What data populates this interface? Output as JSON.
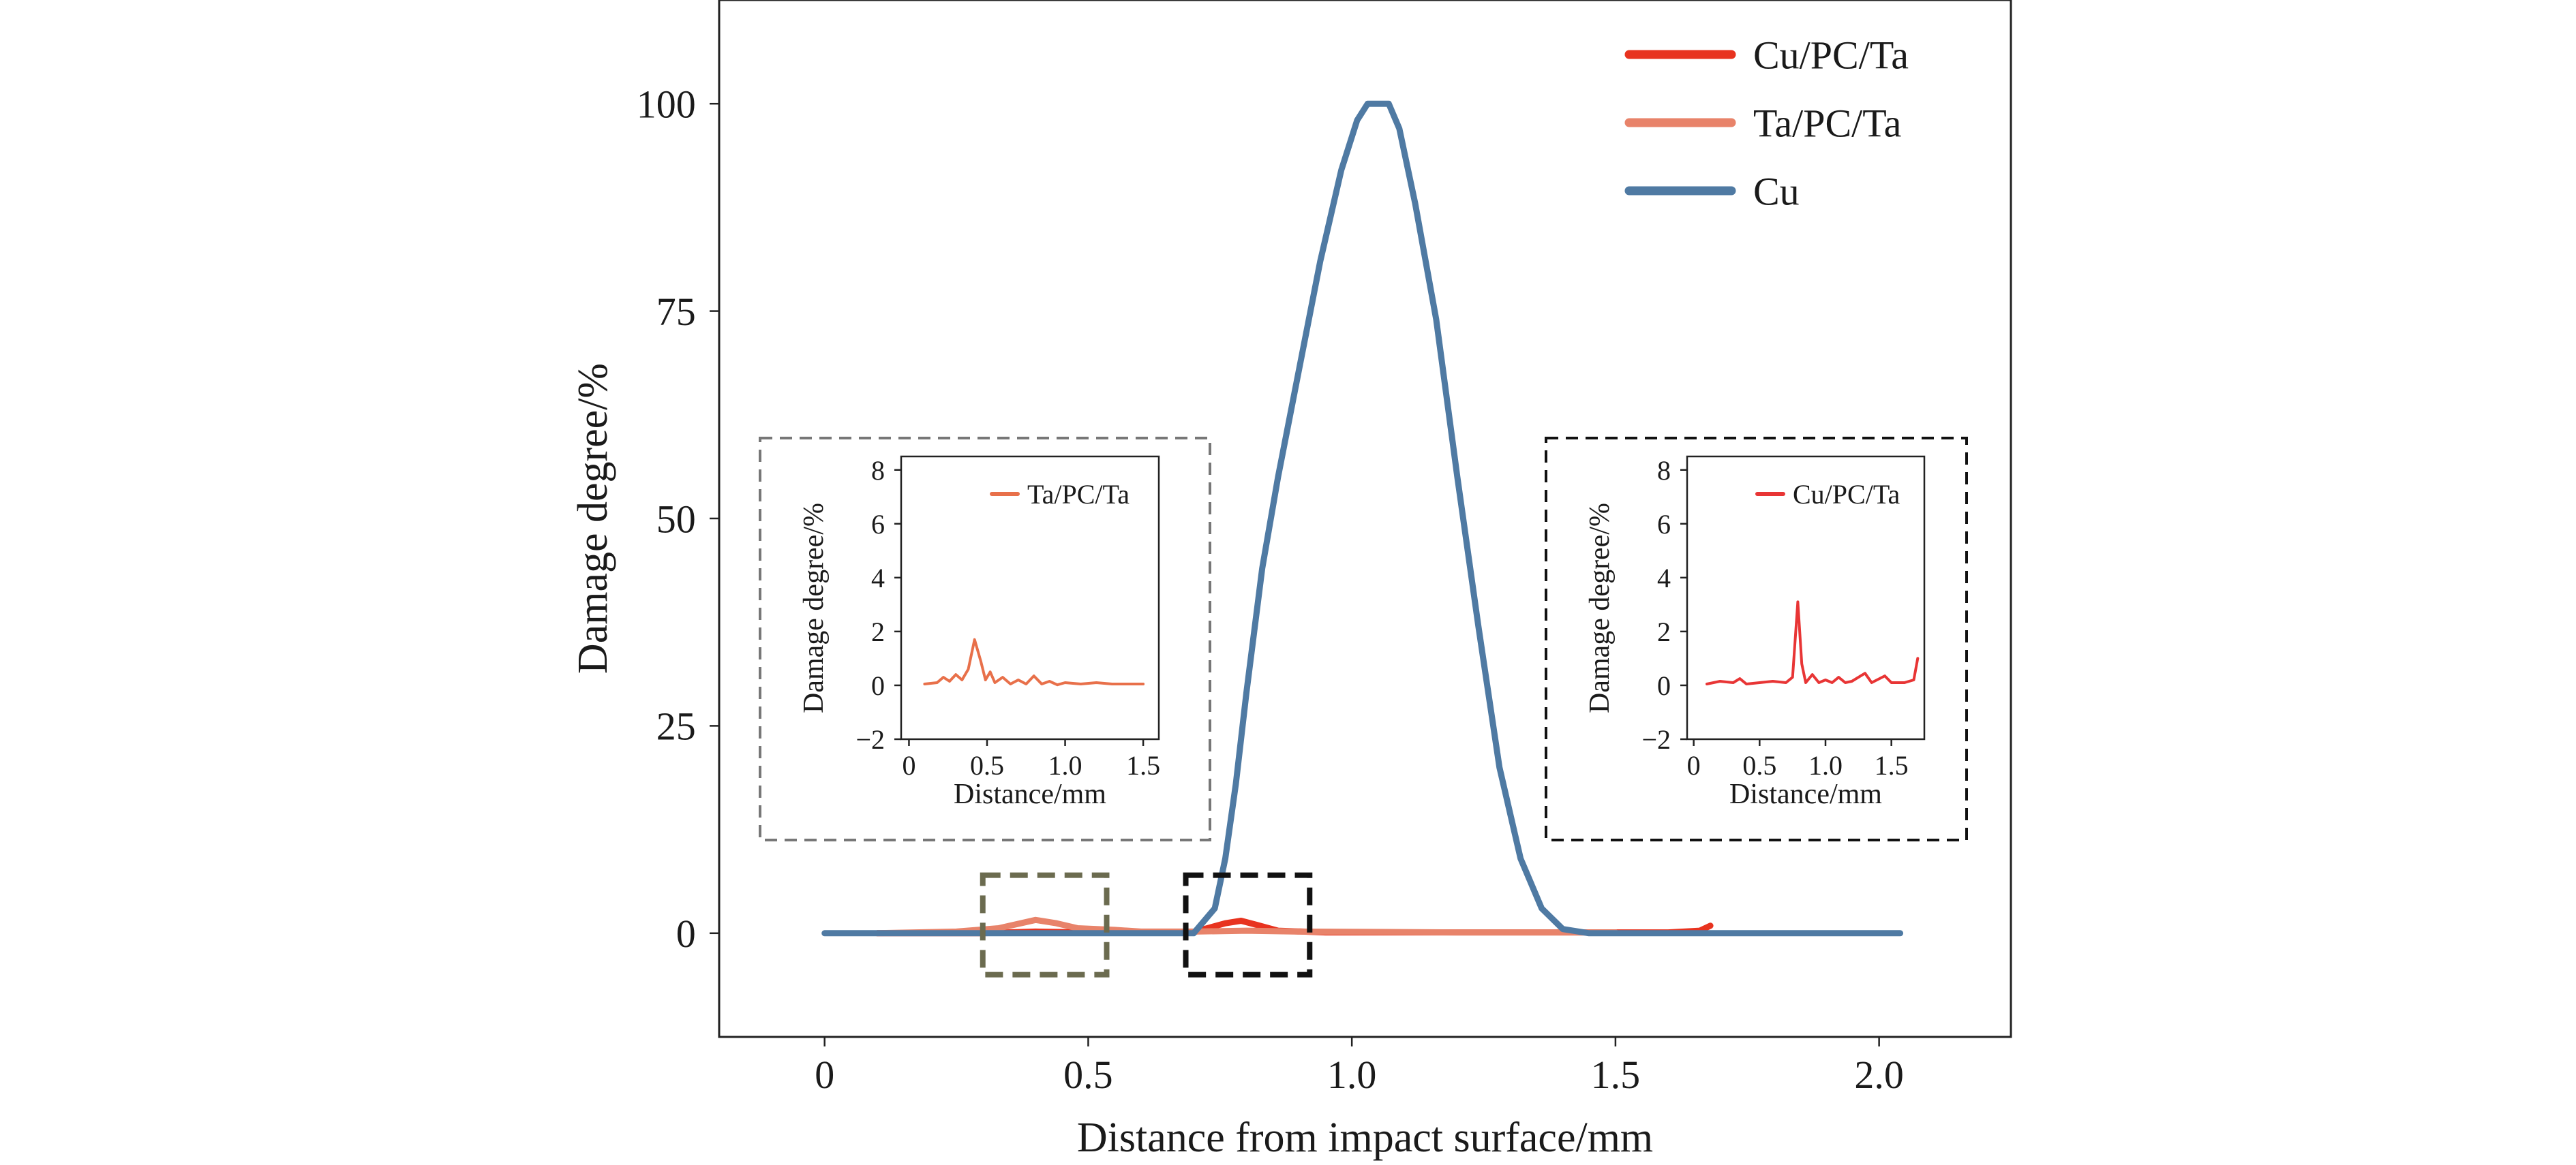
{
  "chart_data": [
    {
      "id": "main",
      "type": "line",
      "xlabel": "Distance from impact surface/mm",
      "ylabel": "Damage degree/%",
      "xlim": [
        -0.2,
        2.25
      ],
      "ylim": [
        -12.5,
        112.5
      ],
      "xticks": [
        0,
        0.5,
        1.0,
        1.5,
        2.0
      ],
      "xtick_labels": [
        "0",
        "0.5",
        "1.0",
        "1.5",
        "2.0"
      ],
      "yticks": [
        0,
        25,
        50,
        75,
        100
      ],
      "ytick_labels": [
        "0",
        "25",
        "50",
        "75",
        "100"
      ],
      "grid": false,
      "legend_position": "top-right",
      "series": [
        {
          "name": "Cu/PC/Ta",
          "color": "#e8331f",
          "points": [
            [
              0.1,
              0
            ],
            [
              0.3,
              0
            ],
            [
              0.4,
              0.2
            ],
            [
              0.5,
              0.1
            ],
            [
              0.6,
              0.1
            ],
            [
              0.7,
              0.1
            ],
            [
              0.72,
              0.5
            ],
            [
              0.76,
              1.2
            ],
            [
              0.79,
              1.5
            ],
            [
              0.82,
              1.0
            ],
            [
              0.86,
              0.3
            ],
            [
              0.95,
              0.1
            ],
            [
              1.2,
              0.1
            ],
            [
              1.5,
              0.1
            ],
            [
              1.6,
              0.1
            ],
            [
              1.66,
              0.3
            ],
            [
              1.68,
              0.9
            ]
          ]
        },
        {
          "name": "Ta/PC/Ta",
          "color": "#e8836a",
          "points": [
            [
              0.1,
              0
            ],
            [
              0.25,
              0.2
            ],
            [
              0.33,
              0.6
            ],
            [
              0.4,
              1.6
            ],
            [
              0.44,
              1.2
            ],
            [
              0.48,
              0.6
            ],
            [
              0.55,
              0.4
            ],
            [
              0.6,
              0.2
            ],
            [
              0.7,
              0.2
            ],
            [
              0.8,
              0.3
            ],
            [
              0.9,
              0.2
            ],
            [
              1.2,
              0.1
            ],
            [
              1.5,
              0.1
            ]
          ]
        },
        {
          "name": "Cu",
          "color": "#4f7aa3",
          "points": [
            [
              0,
              0
            ],
            [
              0.5,
              0
            ],
            [
              0.7,
              0
            ],
            [
              0.74,
              3
            ],
            [
              0.76,
              9
            ],
            [
              0.78,
              18
            ],
            [
              0.8,
              29
            ],
            [
              0.83,
              44
            ],
            [
              0.86,
              55
            ],
            [
              0.9,
              68
            ],
            [
              0.94,
              81
            ],
            [
              0.98,
              92
            ],
            [
              1.01,
              98
            ],
            [
              1.03,
              100
            ],
            [
              1.07,
              100
            ],
            [
              1.09,
              97
            ],
            [
              1.12,
              88
            ],
            [
              1.16,
              74
            ],
            [
              1.2,
              55
            ],
            [
              1.24,
              37
            ],
            [
              1.28,
              20
            ],
            [
              1.32,
              9
            ],
            [
              1.36,
              3
            ],
            [
              1.4,
              0.5
            ],
            [
              1.45,
              0
            ],
            [
              2.04,
              0
            ]
          ]
        }
      ]
    },
    {
      "id": "inset_left",
      "type": "line",
      "xlabel": "Distance/mm",
      "ylabel": "Damage degree/%",
      "xlim": [
        -0.05,
        1.6
      ],
      "ylim": [
        -2,
        8.5
      ],
      "xticks": [
        0,
        0.5,
        1.0,
        1.5
      ],
      "xtick_labels": [
        "0",
        "0.5",
        "1.0",
        "1.5"
      ],
      "yticks": [
        -2,
        0,
        2,
        4,
        6,
        8
      ],
      "ytick_labels": [
        "−2",
        "0",
        "2",
        "4",
        "6",
        "8"
      ],
      "legend_position": "top-right",
      "series": [
        {
          "name": "Ta/PC/Ta",
          "color": "#e8704a",
          "points": [
            [
              0.1,
              0.05
            ],
            [
              0.18,
              0.1
            ],
            [
              0.22,
              0.3
            ],
            [
              0.26,
              0.15
            ],
            [
              0.3,
              0.4
            ],
            [
              0.34,
              0.2
            ],
            [
              0.38,
              0.6
            ],
            [
              0.42,
              1.7
            ],
            [
              0.46,
              0.9
            ],
            [
              0.49,
              0.2
            ],
            [
              0.52,
              0.5
            ],
            [
              0.55,
              0.1
            ],
            [
              0.6,
              0.3
            ],
            [
              0.65,
              0.05
            ],
            [
              0.7,
              0.2
            ],
            [
              0.75,
              0.05
            ],
            [
              0.8,
              0.35
            ],
            [
              0.85,
              0.05
            ],
            [
              0.9,
              0.15
            ],
            [
              0.95,
              0.02
            ],
            [
              1.0,
              0.1
            ],
            [
              1.1,
              0.05
            ],
            [
              1.2,
              0.1
            ],
            [
              1.3,
              0.05
            ],
            [
              1.4,
              0.05
            ],
            [
              1.5,
              0.05
            ]
          ]
        }
      ]
    },
    {
      "id": "inset_right",
      "type": "line",
      "xlabel": "Distance/mm",
      "ylabel": "Damage degree/%",
      "xlim": [
        -0.05,
        1.75
      ],
      "ylim": [
        -2,
        8.5
      ],
      "xticks": [
        0,
        0.5,
        1.0,
        1.5
      ],
      "xtick_labels": [
        "0",
        "0.5",
        "1.0",
        "1.5"
      ],
      "yticks": [
        -2,
        0,
        2,
        4,
        6,
        8
      ],
      "ytick_labels": [
        "−2",
        "0",
        "2",
        "4",
        "6",
        "8"
      ],
      "legend_position": "top-right",
      "series": [
        {
          "name": "Cu/PC/Ta",
          "color": "#e83535",
          "points": [
            [
              0.1,
              0.05
            ],
            [
              0.2,
              0.15
            ],
            [
              0.3,
              0.1
            ],
            [
              0.35,
              0.25
            ],
            [
              0.4,
              0.05
            ],
            [
              0.5,
              0.1
            ],
            [
              0.6,
              0.15
            ],
            [
              0.7,
              0.1
            ],
            [
              0.75,
              0.3
            ],
            [
              0.79,
              3.1
            ],
            [
              0.82,
              0.8
            ],
            [
              0.85,
              0.1
            ],
            [
              0.9,
              0.4
            ],
            [
              0.95,
              0.1
            ],
            [
              1.0,
              0.2
            ],
            [
              1.05,
              0.1
            ],
            [
              1.1,
              0.3
            ],
            [
              1.15,
              0.1
            ],
            [
              1.2,
              0.15
            ],
            [
              1.3,
              0.45
            ],
            [
              1.35,
              0.1
            ],
            [
              1.45,
              0.35
            ],
            [
              1.5,
              0.1
            ],
            [
              1.6,
              0.1
            ],
            [
              1.67,
              0.2
            ],
            [
              1.7,
              1.0
            ]
          ]
        }
      ]
    }
  ]
}
